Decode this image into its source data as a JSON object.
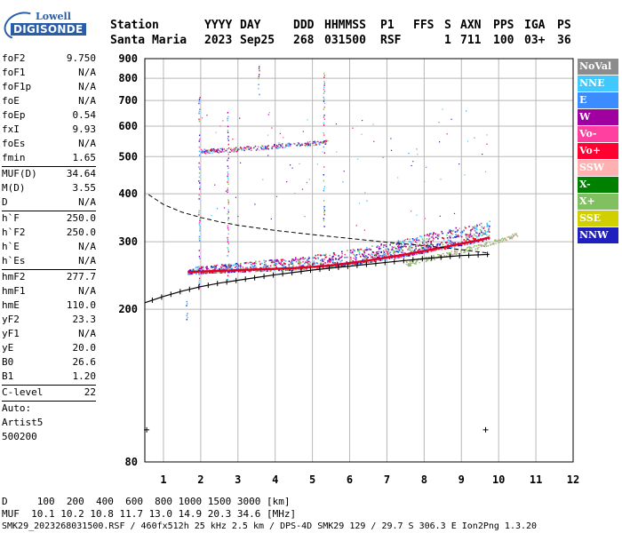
{
  "logo": {
    "top": "Lowell",
    "bottom": "DIGISONDE"
  },
  "header": {
    "labels": [
      "Station",
      "YYYY",
      "DAY",
      "DDD",
      "HHMMSS",
      "P1",
      "FFS",
      "S",
      "AXN",
      "PPS",
      "IGA",
      "PS"
    ],
    "values": [
      "Santa Maria",
      "2023",
      "Sep25",
      "268",
      "031500",
      "RSF",
      "1",
      "711",
      "100",
      "03+",
      "36"
    ]
  },
  "params": [
    {
      "label": "foF2",
      "value": "9.750"
    },
    {
      "label": "foF1",
      "value": "N/A"
    },
    {
      "label": "foF1p",
      "value": "N/A"
    },
    {
      "label": "foE",
      "value": "N/A"
    },
    {
      "label": "foEp",
      "value": "0.54"
    },
    {
      "label": "fxI",
      "value": "9.93"
    },
    {
      "label": "foEs",
      "value": "N/A"
    },
    {
      "label": "fmin",
      "value": "1.65"
    },
    {
      "sep": true
    },
    {
      "label": "MUF(D)",
      "value": "34.64"
    },
    {
      "label": "M(D)",
      "value": "3.55"
    },
    {
      "label": "D",
      "value": "N/A"
    },
    {
      "sep": true
    },
    {
      "label": "h`F",
      "value": "250.0"
    },
    {
      "label": "h`F2",
      "value": "250.0"
    },
    {
      "label": "h`E",
      "value": "N/A"
    },
    {
      "label": "h`Es",
      "value": "N/A"
    },
    {
      "sep": true
    },
    {
      "label": "hmF2",
      "value": "277.7"
    },
    {
      "label": "hmF1",
      "value": "N/A"
    },
    {
      "label": "hmE",
      "value": "110.0"
    },
    {
      "label": "yF2",
      "value": "23.3"
    },
    {
      "label": "yF1",
      "value": "N/A"
    },
    {
      "label": "yE",
      "value": "20.0"
    },
    {
      "label": "B0",
      "value": "26.6"
    },
    {
      "label": "B1",
      "value": "1.20"
    },
    {
      "sep": true
    },
    {
      "label": "C-level",
      "value": "22"
    },
    {
      "sep": true
    },
    {
      "label": "Auto:",
      "value": ""
    },
    {
      "label": "Artist5",
      "value": ""
    },
    {
      "label": "500200",
      "value": ""
    }
  ],
  "legend": [
    {
      "label": "NoVal",
      "color": "#8c8c8c"
    },
    {
      "label": "NNE",
      "color": "#40c8ff"
    },
    {
      "label": "E",
      "color": "#3a8cff"
    },
    {
      "label": "W",
      "color": "#a000a0"
    },
    {
      "label": "Vo-",
      "color": "#ff40a0"
    },
    {
      "label": "Vo+",
      "color": "#ff0030"
    },
    {
      "label": "SSW",
      "color": "#ffb0b0"
    },
    {
      "label": "X-",
      "color": "#008000"
    },
    {
      "label": "X+",
      "color": "#80c060"
    },
    {
      "label": "SSE",
      "color": "#d0d000"
    },
    {
      "label": "NNW",
      "color": "#2020c0"
    }
  ],
  "bottom": {
    "d_row": "D     100  200  400  600  800 1000 1500 3000 [km]",
    "muf_row": "MUF  10.1 10.2 10.8 11.7 13.0 14.9 20.3 34.6 [MHz]",
    "footer": "SMK29_2023268031500.RSF / 460fx512h 25 kHz 2.5 km / DPS-4D SMK29 129 / 29.7 S 306.3 E Ion2Png 1.3.20"
  },
  "chart_data": {
    "type": "scatter",
    "xlim": [
      0.5,
      12
    ],
    "ylim": [
      80,
      900
    ],
    "x_ticks": [
      1,
      2,
      3,
      4,
      5,
      6,
      7,
      8,
      9,
      10,
      11,
      12
    ],
    "y_ticks": [
      80,
      200,
      300,
      400,
      500,
      600,
      700,
      800,
      900
    ],
    "y_scale": "log",
    "grid": true,
    "trace_colors": [
      "#ff0030",
      "#a000a0",
      "#2020c0",
      "#3a8cff",
      "#ff40a0",
      "#40c8ff",
      "#80c060"
    ],
    "o_trace": {
      "x": [
        1.65,
        2.5,
        3.5,
        4.5,
        5.5,
        6.5,
        7.5,
        8.5,
        9.5,
        9.75
      ],
      "y": [
        250,
        252,
        254,
        256,
        260,
        268,
        278,
        290,
        303,
        308
      ]
    },
    "x_trace": {
      "x": [
        7.5,
        8.5,
        9.5,
        10.2,
        10.5
      ],
      "y": [
        262,
        276,
        292,
        306,
        313
      ]
    },
    "e2_trace": {
      "x": [
        2.0,
        2.8,
        3.5,
        4.2,
        5.0,
        5.4
      ],
      "y": [
        517,
        522,
        528,
        535,
        543,
        548
      ]
    },
    "profile_line": {
      "x": [
        0.5,
        1.0,
        1.5,
        2.0,
        2.5,
        3.0,
        3.5,
        4.0,
        5.0,
        6.0,
        7.0,
        8.0,
        9.0,
        9.75
      ],
      "y": [
        208,
        216,
        223,
        229,
        234,
        238,
        242,
        246,
        253,
        259,
        265,
        271,
        276,
        278
      ]
    },
    "mufd_curve": {
      "x": [
        0.6,
        1.0,
        1.5,
        2.0,
        2.5,
        3.0,
        3.5,
        4.0,
        5.0,
        6.0,
        7.0,
        8.0,
        9.0,
        9.75
      ],
      "y": [
        398,
        375,
        358,
        347,
        338,
        331,
        326,
        321,
        313,
        306,
        299,
        293,
        286,
        280
      ]
    },
    "vertical_streaks": [
      {
        "x": 1.62,
        "y1": 180,
        "y2": 215
      },
      {
        "x": 1.95,
        "y1": 225,
        "y2": 740
      },
      {
        "x": 2.72,
        "y1": 240,
        "y2": 660
      },
      {
        "x": 3.55,
        "y1": 720,
        "y2": 870
      },
      {
        "x": 5.3,
        "y1": 330,
        "y2": 830
      }
    ],
    "markers": [
      {
        "x": 0.55,
        "y": 97
      },
      {
        "x": 9.65,
        "y": 97
      }
    ]
  }
}
